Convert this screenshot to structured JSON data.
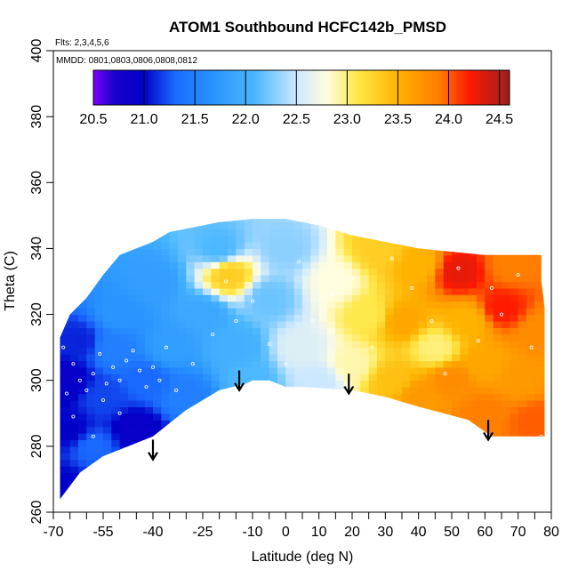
{
  "chart_data": {
    "type": "heatmap",
    "title": "ATOM1 Southbound HCFC142b_PMSD",
    "annotations": [
      "Flts: 2,3,4,5,6",
      "MMDD: 0801,0803,0806,0808,0812"
    ],
    "xlabel": "Latitude (deg N)",
    "ylabel": "Theta (C)",
    "xlim": [
      -70,
      80
    ],
    "ylim": [
      260,
      400
    ],
    "x_ticks_labeled": [
      -70,
      -55,
      -40,
      -25,
      -10,
      0,
      10,
      20,
      30,
      40,
      50,
      60,
      70,
      80
    ],
    "x_ticks_minor": [
      -65,
      -60,
      -50,
      -45,
      -35,
      -30,
      -20,
      -15,
      -5,
      5,
      15,
      25,
      35,
      45,
      55,
      65,
      75
    ],
    "y_ticks": [
      260,
      280,
      300,
      320,
      340,
      360,
      380,
      400
    ],
    "colorbar": {
      "range": [
        20.5,
        24.6
      ],
      "tick_labels": [
        "20.5",
        "21.0",
        "21.5",
        "22.0",
        "22.5",
        "23.0",
        "23.5",
        "24.0",
        "24.5"
      ],
      "stops": [
        {
          "v": 20.5,
          "c": "#7f00ff"
        },
        {
          "v": 20.7,
          "c": "#1a00cc"
        },
        {
          "v": 21.0,
          "c": "#0000c8"
        },
        {
          "v": 21.3,
          "c": "#1a6aff"
        },
        {
          "v": 21.7,
          "c": "#2a95ff"
        },
        {
          "v": 22.1,
          "c": "#4cb8ff"
        },
        {
          "v": 22.5,
          "c": "#cce8ff"
        },
        {
          "v": 22.8,
          "c": "#fffde0"
        },
        {
          "v": 23.1,
          "c": "#ffe84a"
        },
        {
          "v": 23.5,
          "c": "#ffb300"
        },
        {
          "v": 23.9,
          "c": "#ff7f00"
        },
        {
          "v": 24.2,
          "c": "#ff1a00"
        },
        {
          "v": 24.6,
          "c": "#9b1f1f"
        }
      ]
    },
    "field_samples": [
      {
        "x": -68,
        "y": 268,
        "v": 21.0
      },
      {
        "x": -65,
        "y": 285,
        "v": 21.0
      },
      {
        "x": -66,
        "y": 300,
        "v": 20.9
      },
      {
        "x": -62,
        "y": 312,
        "v": 21.1
      },
      {
        "x": -58,
        "y": 280,
        "v": 21.3
      },
      {
        "x": -55,
        "y": 295,
        "v": 21.2
      },
      {
        "x": -52,
        "y": 310,
        "v": 21.5
      },
      {
        "x": -50,
        "y": 320,
        "v": 21.7
      },
      {
        "x": -45,
        "y": 285,
        "v": 20.9
      },
      {
        "x": -42,
        "y": 300,
        "v": 21.3
      },
      {
        "x": -40,
        "y": 330,
        "v": 21.8
      },
      {
        "x": -35,
        "y": 310,
        "v": 21.8
      },
      {
        "x": -30,
        "y": 295,
        "v": 21.5
      },
      {
        "x": -25,
        "y": 320,
        "v": 21.9
      },
      {
        "x": -20,
        "y": 340,
        "v": 22.1
      },
      {
        "x": -17,
        "y": 332,
        "v": 23.3
      },
      {
        "x": -15,
        "y": 310,
        "v": 22.0
      },
      {
        "x": -10,
        "y": 300,
        "v": 22.1
      },
      {
        "x": -5,
        "y": 325,
        "v": 22.2
      },
      {
        "x": 0,
        "y": 340,
        "v": 22.3
      },
      {
        "x": 5,
        "y": 310,
        "v": 22.6
      },
      {
        "x": 10,
        "y": 300,
        "v": 22.5
      },
      {
        "x": 15,
        "y": 330,
        "v": 22.8
      },
      {
        "x": 20,
        "y": 305,
        "v": 22.9
      },
      {
        "x": 25,
        "y": 320,
        "v": 23.1
      },
      {
        "x": 28,
        "y": 340,
        "v": 23.3
      },
      {
        "x": 32,
        "y": 300,
        "v": 23.4
      },
      {
        "x": 35,
        "y": 318,
        "v": 23.6
      },
      {
        "x": 40,
        "y": 295,
        "v": 23.7
      },
      {
        "x": 40,
        "y": 335,
        "v": 23.5
      },
      {
        "x": 45,
        "y": 310,
        "v": 23.0
      },
      {
        "x": 50,
        "y": 300,
        "v": 23.8
      },
      {
        "x": 52,
        "y": 333,
        "v": 24.3
      },
      {
        "x": 55,
        "y": 318,
        "v": 23.5
      },
      {
        "x": 60,
        "y": 290,
        "v": 23.9
      },
      {
        "x": 60,
        "y": 305,
        "v": 23.6
      },
      {
        "x": 65,
        "y": 322,
        "v": 24.2
      },
      {
        "x": 68,
        "y": 335,
        "v": 23.9
      },
      {
        "x": 70,
        "y": 300,
        "v": 23.7
      },
      {
        "x": 75,
        "y": 288,
        "v": 24.0
      },
      {
        "x": 77,
        "y": 315,
        "v": 23.8
      }
    ],
    "boundary": {
      "upper": [
        [
          -68,
          313
        ],
        [
          -65,
          320
        ],
        [
          -60,
          325
        ],
        [
          -55,
          332
        ],
        [
          -50,
          338
        ],
        [
          -45,
          340
        ],
        [
          -40,
          342
        ],
        [
          -35,
          345
        ],
        [
          -30,
          346
        ],
        [
          -25,
          347
        ],
        [
          -20,
          348
        ],
        [
          -10,
          349
        ],
        [
          0,
          349
        ],
        [
          10,
          347
        ],
        [
          20,
          344
        ],
        [
          30,
          342
        ],
        [
          40,
          340
        ],
        [
          50,
          339
        ],
        [
          60,
          338
        ],
        [
          65,
          338
        ],
        [
          70,
          338
        ],
        [
          77,
          338
        ],
        [
          77,
          330
        ],
        [
          78,
          322
        ],
        [
          78,
          313
        ],
        [
          78,
          305
        ],
        [
          78,
          296
        ],
        [
          78,
          283
        ]
      ],
      "lower": [
        [
          78,
          283
        ],
        [
          72,
          283
        ],
        [
          62,
          283
        ],
        [
          55,
          288
        ],
        [
          40,
          292
        ],
        [
          30,
          295
        ],
        [
          20,
          297
        ],
        [
          5,
          298
        ],
        [
          0,
          298
        ],
        [
          -5,
          300
        ],
        [
          -10,
          300
        ],
        [
          -12,
          299
        ],
        [
          -20,
          297
        ],
        [
          -30,
          291
        ],
        [
          -40,
          283
        ],
        [
          -50,
          279
        ],
        [
          -55,
          277
        ],
        [
          -62,
          272
        ],
        [
          -68,
          264
        ]
      ]
    },
    "markers": [
      {
        "x": -40,
        "y_from": 282,
        "y_to": 276
      },
      {
        "x": -14,
        "y_from": 303,
        "y_to": 297
      },
      {
        "x": 19,
        "y_from": 302,
        "y_to": 296
      },
      {
        "x": 61,
        "y_from": 288,
        "y_to": 282
      }
    ],
    "sample_points": [
      {
        "x": -67,
        "y": 310
      },
      {
        "x": -64,
        "y": 305
      },
      {
        "x": -62,
        "y": 300
      },
      {
        "x": -60,
        "y": 297
      },
      {
        "x": -58,
        "y": 302
      },
      {
        "x": -56,
        "y": 308
      },
      {
        "x": -54,
        "y": 299
      },
      {
        "x": -52,
        "y": 304
      },
      {
        "x": -50,
        "y": 300
      },
      {
        "x": -48,
        "y": 306
      },
      {
        "x": -46,
        "y": 309
      },
      {
        "x": -44,
        "y": 303
      },
      {
        "x": -42,
        "y": 298
      },
      {
        "x": -40,
        "y": 304
      },
      {
        "x": -38,
        "y": 300
      },
      {
        "x": -36,
        "y": 310
      },
      {
        "x": -33,
        "y": 297
      },
      {
        "x": -28,
        "y": 305
      },
      {
        "x": -22,
        "y": 314
      },
      {
        "x": -18,
        "y": 330
      },
      {
        "x": -15,
        "y": 318
      },
      {
        "x": -10,
        "y": 324
      },
      {
        "x": -5,
        "y": 311
      },
      {
        "x": 0,
        "y": 305
      },
      {
        "x": 4,
        "y": 336
      },
      {
        "x": 8,
        "y": 318
      },
      {
        "x": 14,
        "y": 326
      },
      {
        "x": 20,
        "y": 331
      },
      {
        "x": 26,
        "y": 310
      },
      {
        "x": 32,
        "y": 337
      },
      {
        "x": 38,
        "y": 328
      },
      {
        "x": 44,
        "y": 318
      },
      {
        "x": 48,
        "y": 302
      },
      {
        "x": 52,
        "y": 334
      },
      {
        "x": 58,
        "y": 312
      },
      {
        "x": 62,
        "y": 328
      },
      {
        "x": 65,
        "y": 320
      },
      {
        "x": 70,
        "y": 332
      },
      {
        "x": 74,
        "y": 310
      },
      {
        "x": 77,
        "y": 283
      },
      {
        "x": -64,
        "y": 289
      },
      {
        "x": -58,
        "y": 283
      },
      {
        "x": -50,
        "y": 290
      },
      {
        "x": -46,
        "y": 278
      },
      {
        "x": -40,
        "y": 282
      },
      {
        "x": -35,
        "y": 284
      },
      {
        "x": -55,
        "y": 294
      },
      {
        "x": -66,
        "y": 296
      }
    ]
  }
}
